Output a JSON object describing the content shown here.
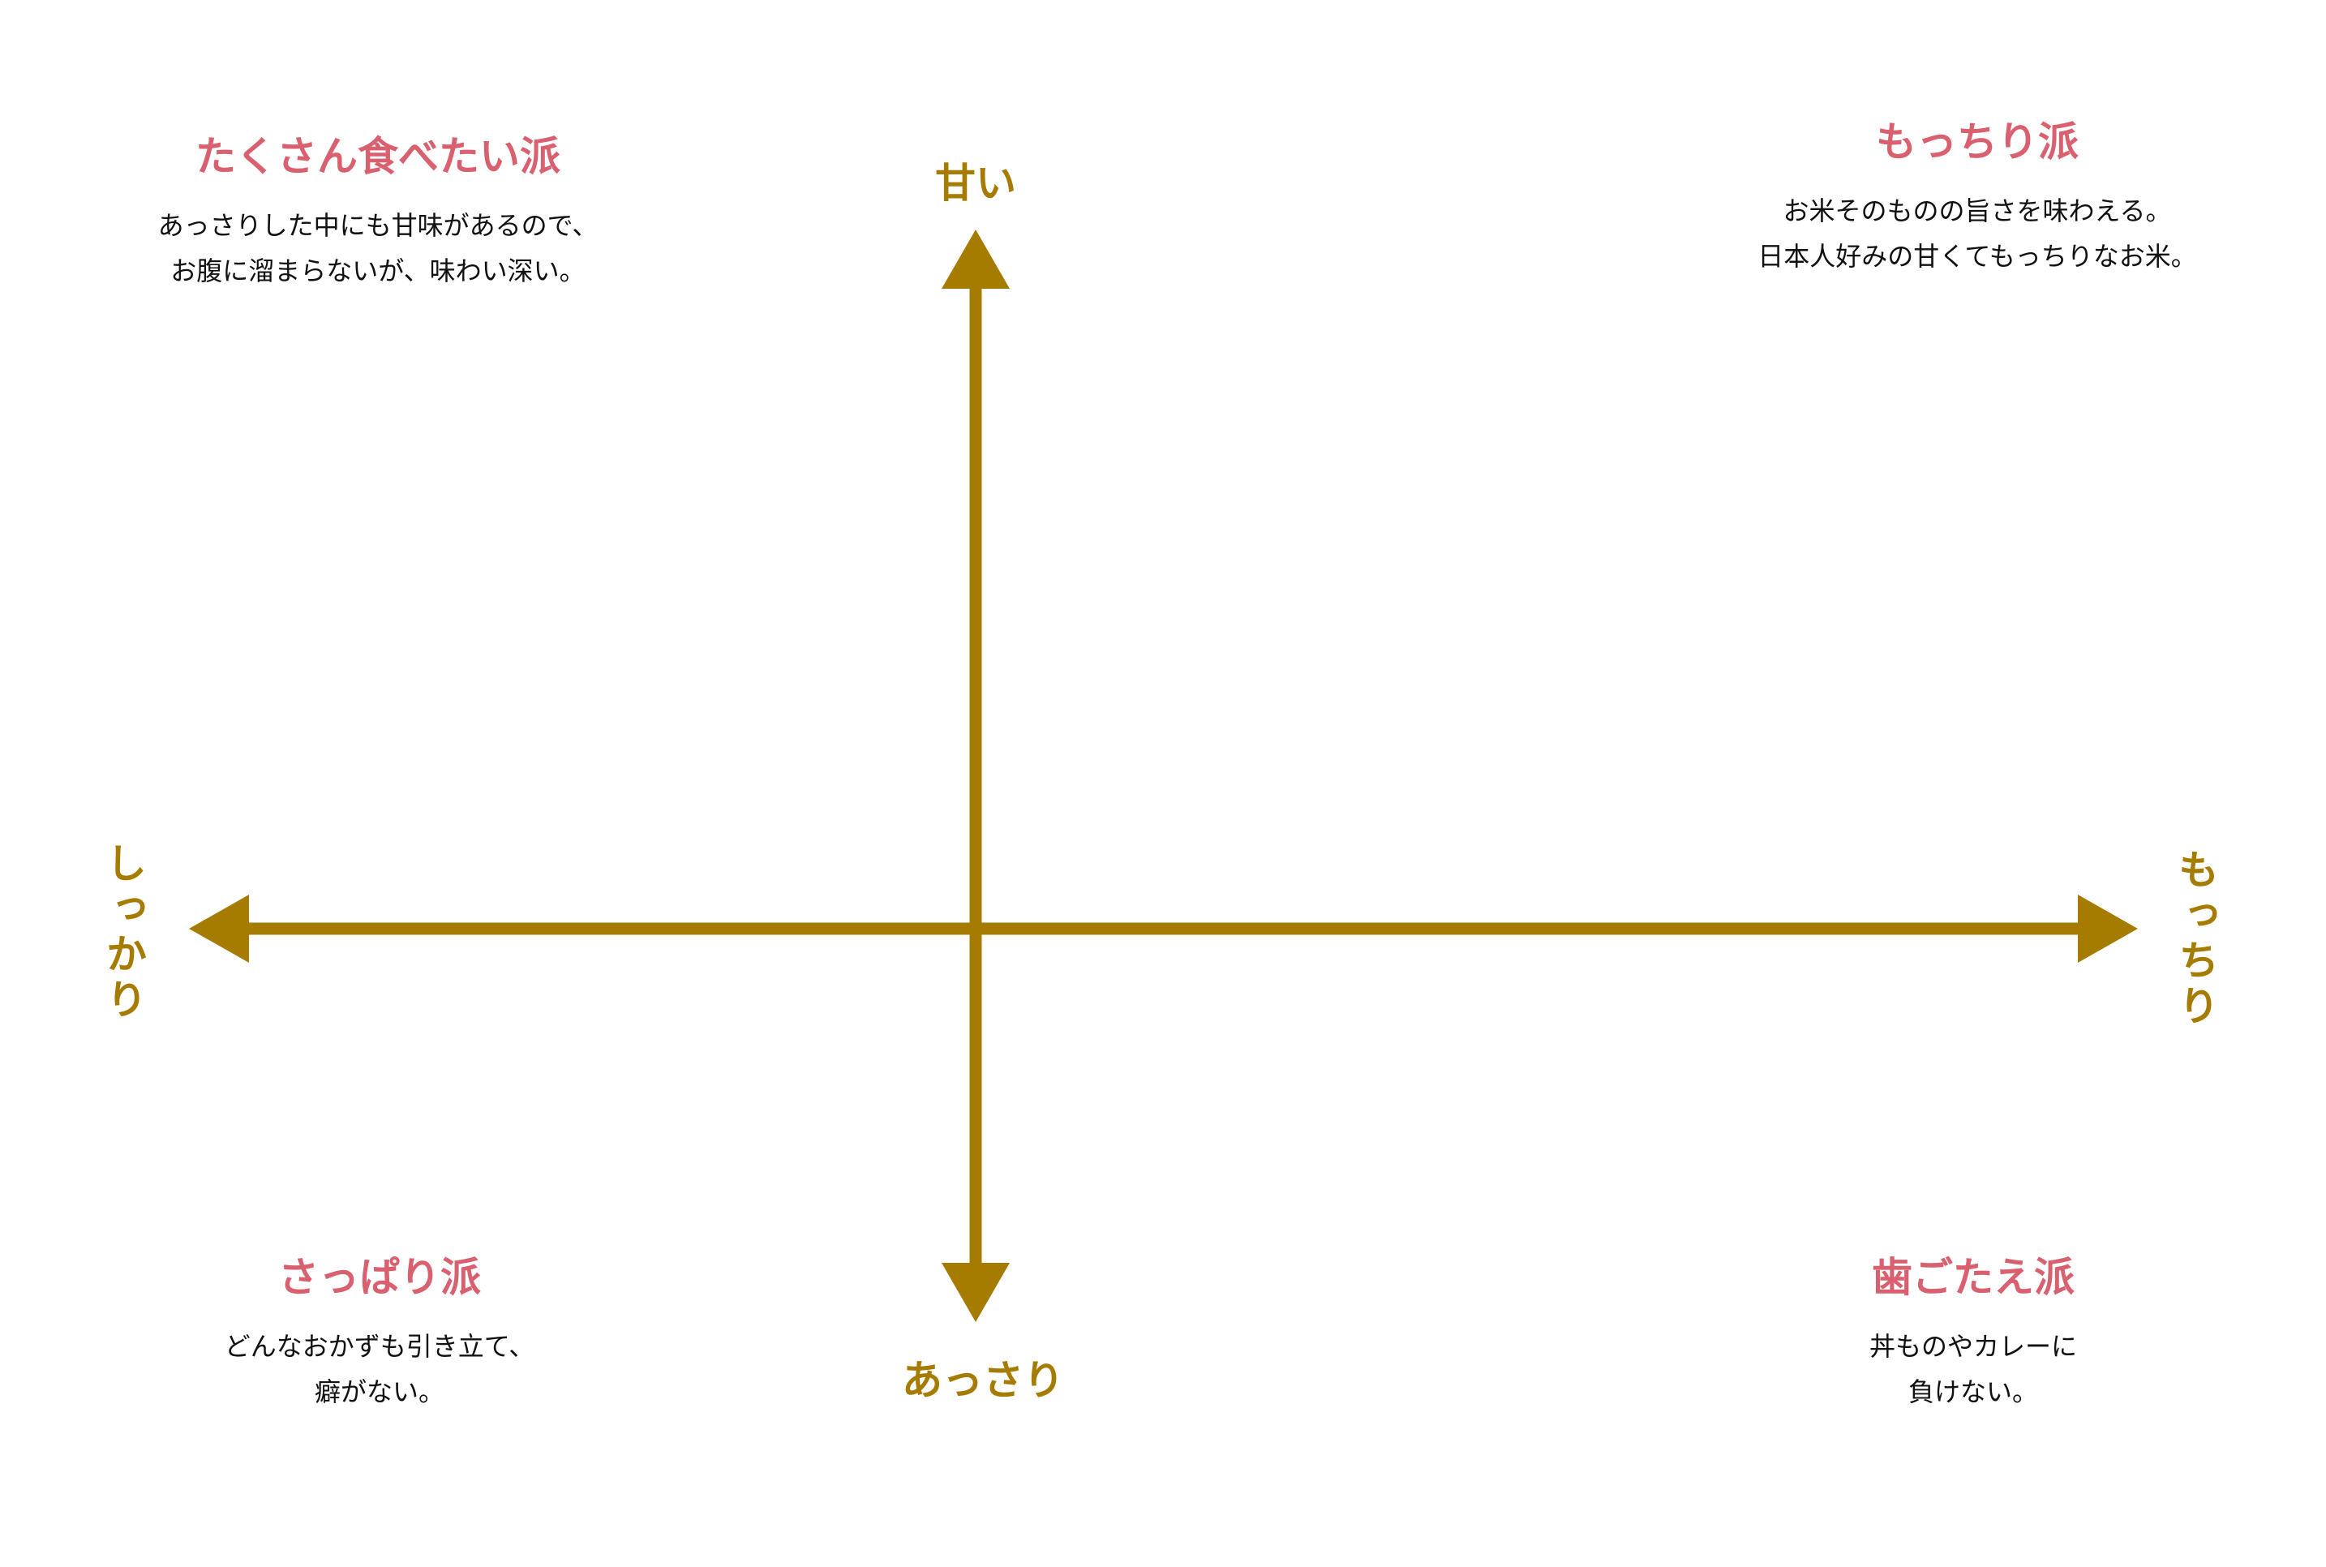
{
  "colors": {
    "axis": "#a67c00",
    "title": "#d9606f",
    "text": "#111111"
  },
  "axes": {
    "top": "甘い",
    "bottom": "あっさり",
    "left": "しっかり",
    "right": "もっちり"
  },
  "quadrants": {
    "top_left": {
      "title": "たくさん食べたい派",
      "lines": [
        "あっさりした中にも甘味があるので、",
        "お腹に溜まらないが、味わい深い。"
      ]
    },
    "top_right": {
      "title": "もっちり派",
      "lines": [
        "お米そのものの旨さを味わえる。",
        "日本人好みの甘くてもっちりなお米。"
      ]
    },
    "bottom_left": {
      "title": "さっぱり派",
      "lines": [
        "どんなおかずも引き立て、",
        "癖がない。"
      ]
    },
    "bottom_right": {
      "title": "歯ごたえ派",
      "lines": [
        "丼ものやカレーに",
        "負けない。"
      ]
    }
  }
}
